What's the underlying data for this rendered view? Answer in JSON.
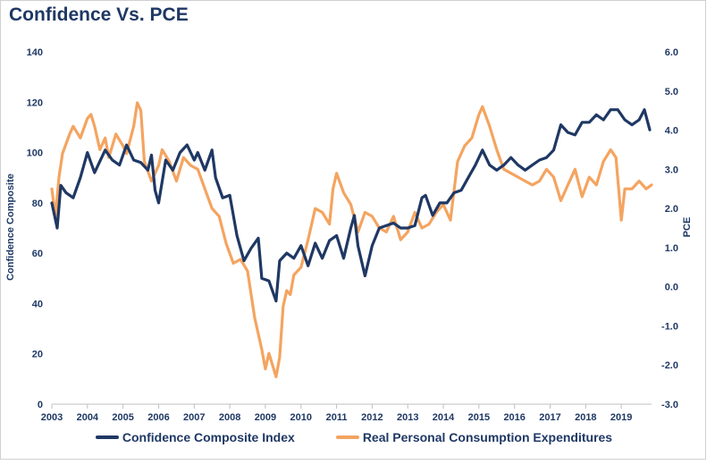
{
  "chart_data": {
    "type": "line",
    "title": "Confidence Vs. PCE",
    "ylabel_left": "Confidence Composite",
    "ylabel_right": "PCE",
    "x_ticks": [
      "2003",
      "2004",
      "2005",
      "2006",
      "2007",
      "2008",
      "2009",
      "2010",
      "2011",
      "2012",
      "2013",
      "2014",
      "2015",
      "2016",
      "2017",
      "2018",
      "2019"
    ],
    "y_left_ticks": [
      "0",
      "20",
      "40",
      "60",
      "80",
      "100",
      "120",
      "140"
    ],
    "y_right_ticks": [
      "-3.0",
      "-2.0",
      "-1.0",
      "0.0",
      "1.0",
      "2.0",
      "3.0",
      "4.0",
      "5.0",
      "6.0"
    ],
    "ylim_left": [
      0,
      140
    ],
    "ylim_right": [
      -3,
      6
    ],
    "xlim": [
      2003,
      2019.85
    ],
    "grid": false,
    "legend_position": "bottom",
    "series": [
      {
        "name": "Confidence Composite Index",
        "axis": "left",
        "color": "#1f3864",
        "x": [
          2003.0,
          2003.15,
          2003.25,
          2003.4,
          2003.6,
          2003.8,
          2004.0,
          2004.2,
          2004.3,
          2004.5,
          2004.7,
          2004.9,
          2005.1,
          2005.3,
          2005.5,
          2005.7,
          2005.8,
          2005.9,
          2006.0,
          2006.2,
          2006.4,
          2006.6,
          2006.8,
          2007.0,
          2007.1,
          2007.3,
          2007.5,
          2007.6,
          2007.8,
          2008.0,
          2008.2,
          2008.4,
          2008.6,
          2008.8,
          2008.9,
          2009.1,
          2009.3,
          2009.4,
          2009.6,
          2009.8,
          2010.0,
          2010.2,
          2010.4,
          2010.6,
          2010.8,
          2011.0,
          2011.2,
          2011.4,
          2011.5,
          2011.6,
          2011.8,
          2012.0,
          2012.2,
          2012.4,
          2012.6,
          2012.8,
          2013.0,
          2013.2,
          2013.4,
          2013.5,
          2013.7,
          2013.9,
          2014.1,
          2014.3,
          2014.5,
          2014.7,
          2014.9,
          2015.1,
          2015.3,
          2015.5,
          2015.7,
          2015.9,
          2016.1,
          2016.3,
          2016.5,
          2016.7,
          2016.9,
          2017.1,
          2017.3,
          2017.5,
          2017.7,
          2017.9,
          2018.1,
          2018.3,
          2018.5,
          2018.7,
          2018.9,
          2019.1,
          2019.3,
          2019.5,
          2019.65,
          2019.8
        ],
        "y": [
          80,
          70,
          87,
          84,
          82,
          90,
          100,
          92,
          95,
          101,
          97,
          95,
          103,
          97,
          96,
          93,
          99,
          85,
          80,
          97,
          93,
          100,
          103,
          97,
          100,
          93,
          101,
          90,
          82,
          83,
          67,
          57,
          62,
          66,
          50,
          49,
          41,
          57,
          60,
          58,
          63,
          55,
          64,
          58,
          65,
          67,
          58,
          70,
          75,
          63,
          51,
          63,
          70,
          71,
          72,
          70,
          70,
          71,
          82,
          83,
          75,
          80,
          80,
          84,
          85,
          90,
          95,
          101,
          95,
          93,
          95,
          98,
          95,
          93,
          95,
          97,
          98,
          101,
          111,
          108,
          107,
          112,
          112,
          115,
          113,
          117,
          117,
          113,
          111,
          113,
          117,
          109
        ]
      },
      {
        "name": "Real Personal Consumption Expenditures",
        "axis": "right",
        "color": "#f4a460",
        "x": [
          2003.0,
          2003.1,
          2003.2,
          2003.3,
          2003.5,
          2003.6,
          2003.8,
          2004.0,
          2004.1,
          2004.2,
          2004.35,
          2004.5,
          2004.6,
          2004.8,
          2005.0,
          2005.1,
          2005.3,
          2005.4,
          2005.5,
          2005.6,
          2005.8,
          2006.0,
          2006.1,
          2006.3,
          2006.5,
          2006.7,
          2006.9,
          2007.1,
          2007.3,
          2007.5,
          2007.7,
          2007.9,
          2008.1,
          2008.3,
          2008.5,
          2008.7,
          2008.9,
          2009.0,
          2009.1,
          2009.2,
          2009.3,
          2009.4,
          2009.5,
          2009.6,
          2009.7,
          2009.8,
          2010.0,
          2010.2,
          2010.4,
          2010.6,
          2010.8,
          2010.9,
          2011.0,
          2011.2,
          2011.4,
          2011.6,
          2011.8,
          2012.0,
          2012.2,
          2012.4,
          2012.6,
          2012.8,
          2013.0,
          2013.2,
          2013.4,
          2013.6,
          2013.8,
          2014.0,
          2014.2,
          2014.4,
          2014.6,
          2014.8,
          2015.0,
          2015.1,
          2015.3,
          2015.5,
          2015.7,
          2015.9,
          2016.1,
          2016.3,
          2016.5,
          2016.7,
          2016.9,
          2017.1,
          2017.3,
          2017.5,
          2017.7,
          2017.9,
          2018.1,
          2018.3,
          2018.5,
          2018.7,
          2018.85,
          2019.0,
          2019.1,
          2019.3,
          2019.5,
          2019.7,
          2019.85
        ],
        "y": [
          2.5,
          1.8,
          2.8,
          3.4,
          3.9,
          4.1,
          3.8,
          4.3,
          4.4,
          4.1,
          3.5,
          3.8,
          3.3,
          3.9,
          3.6,
          3.4,
          4.1,
          4.7,
          4.5,
          3.2,
          2.7,
          3.1,
          3.5,
          3.2,
          2.7,
          3.3,
          3.1,
          3.0,
          2.5,
          2.0,
          1.8,
          1.1,
          0.6,
          0.7,
          0.4,
          -0.8,
          -1.6,
          -2.1,
          -1.7,
          -2.0,
          -2.3,
          -1.8,
          -0.5,
          -0.1,
          -0.2,
          0.3,
          0.5,
          1.2,
          2.0,
          1.9,
          1.6,
          2.5,
          2.9,
          2.4,
          2.1,
          1.4,
          1.9,
          1.8,
          1.5,
          1.4,
          1.8,
          1.2,
          1.4,
          1.9,
          1.5,
          1.6,
          1.9,
          2.1,
          1.7,
          3.2,
          3.6,
          3.8,
          4.4,
          4.6,
          4.1,
          3.5,
          3.0,
          2.9,
          2.8,
          2.7,
          2.6,
          2.7,
          3.0,
          2.8,
          2.2,
          2.6,
          3.0,
          2.3,
          2.8,
          2.6,
          3.2,
          3.5,
          3.3,
          1.7,
          2.5,
          2.5,
          2.7,
          2.5,
          2.6
        ]
      }
    ]
  }
}
